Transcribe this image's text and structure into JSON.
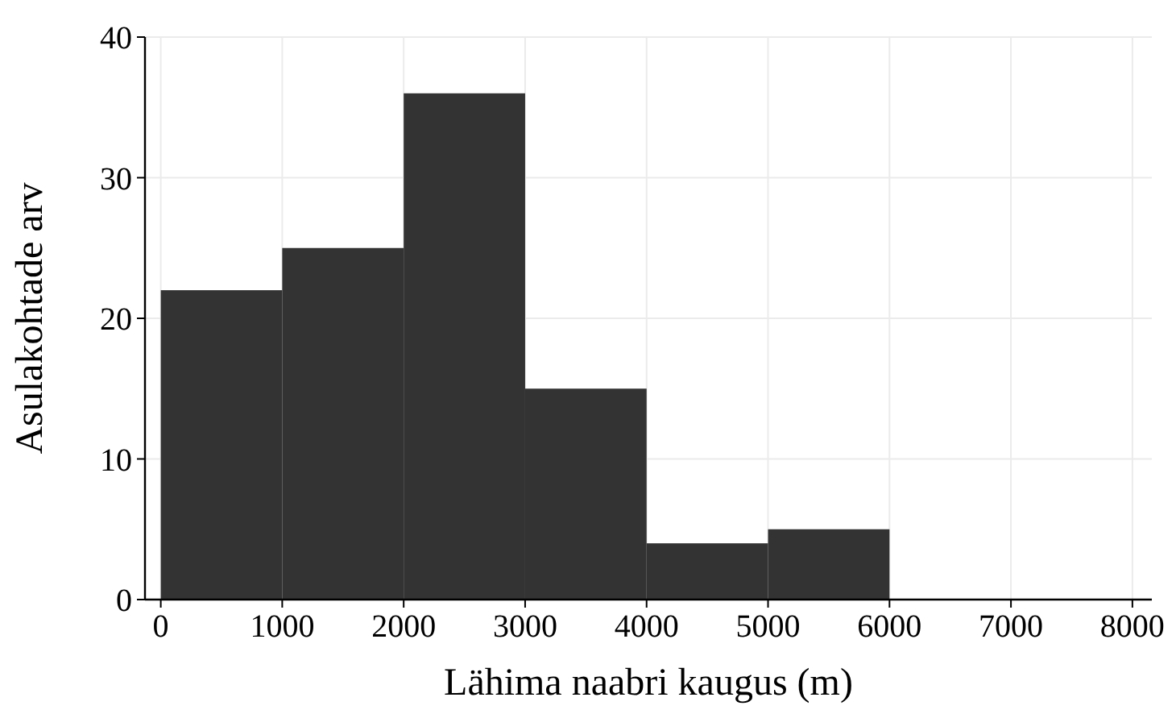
{
  "chart_data": {
    "type": "histogram",
    "xlabel": "Lähima naabri kaugus (m)",
    "ylabel": "Asulakohtade arv",
    "bins": [
      0,
      1000,
      2000,
      3000,
      4000,
      5000,
      6000
    ],
    "values": [
      22,
      25,
      36,
      15,
      4,
      5
    ],
    "color": "#333333",
    "xlim": [
      -130,
      8160
    ],
    "xticks": [
      0,
      1000,
      2000,
      3000,
      4000,
      5000,
      6000,
      7000,
      8000
    ],
    "ylim": [
      0,
      40
    ],
    "yticks": [
      0,
      10,
      20,
      30,
      40
    ],
    "grid": true
  }
}
